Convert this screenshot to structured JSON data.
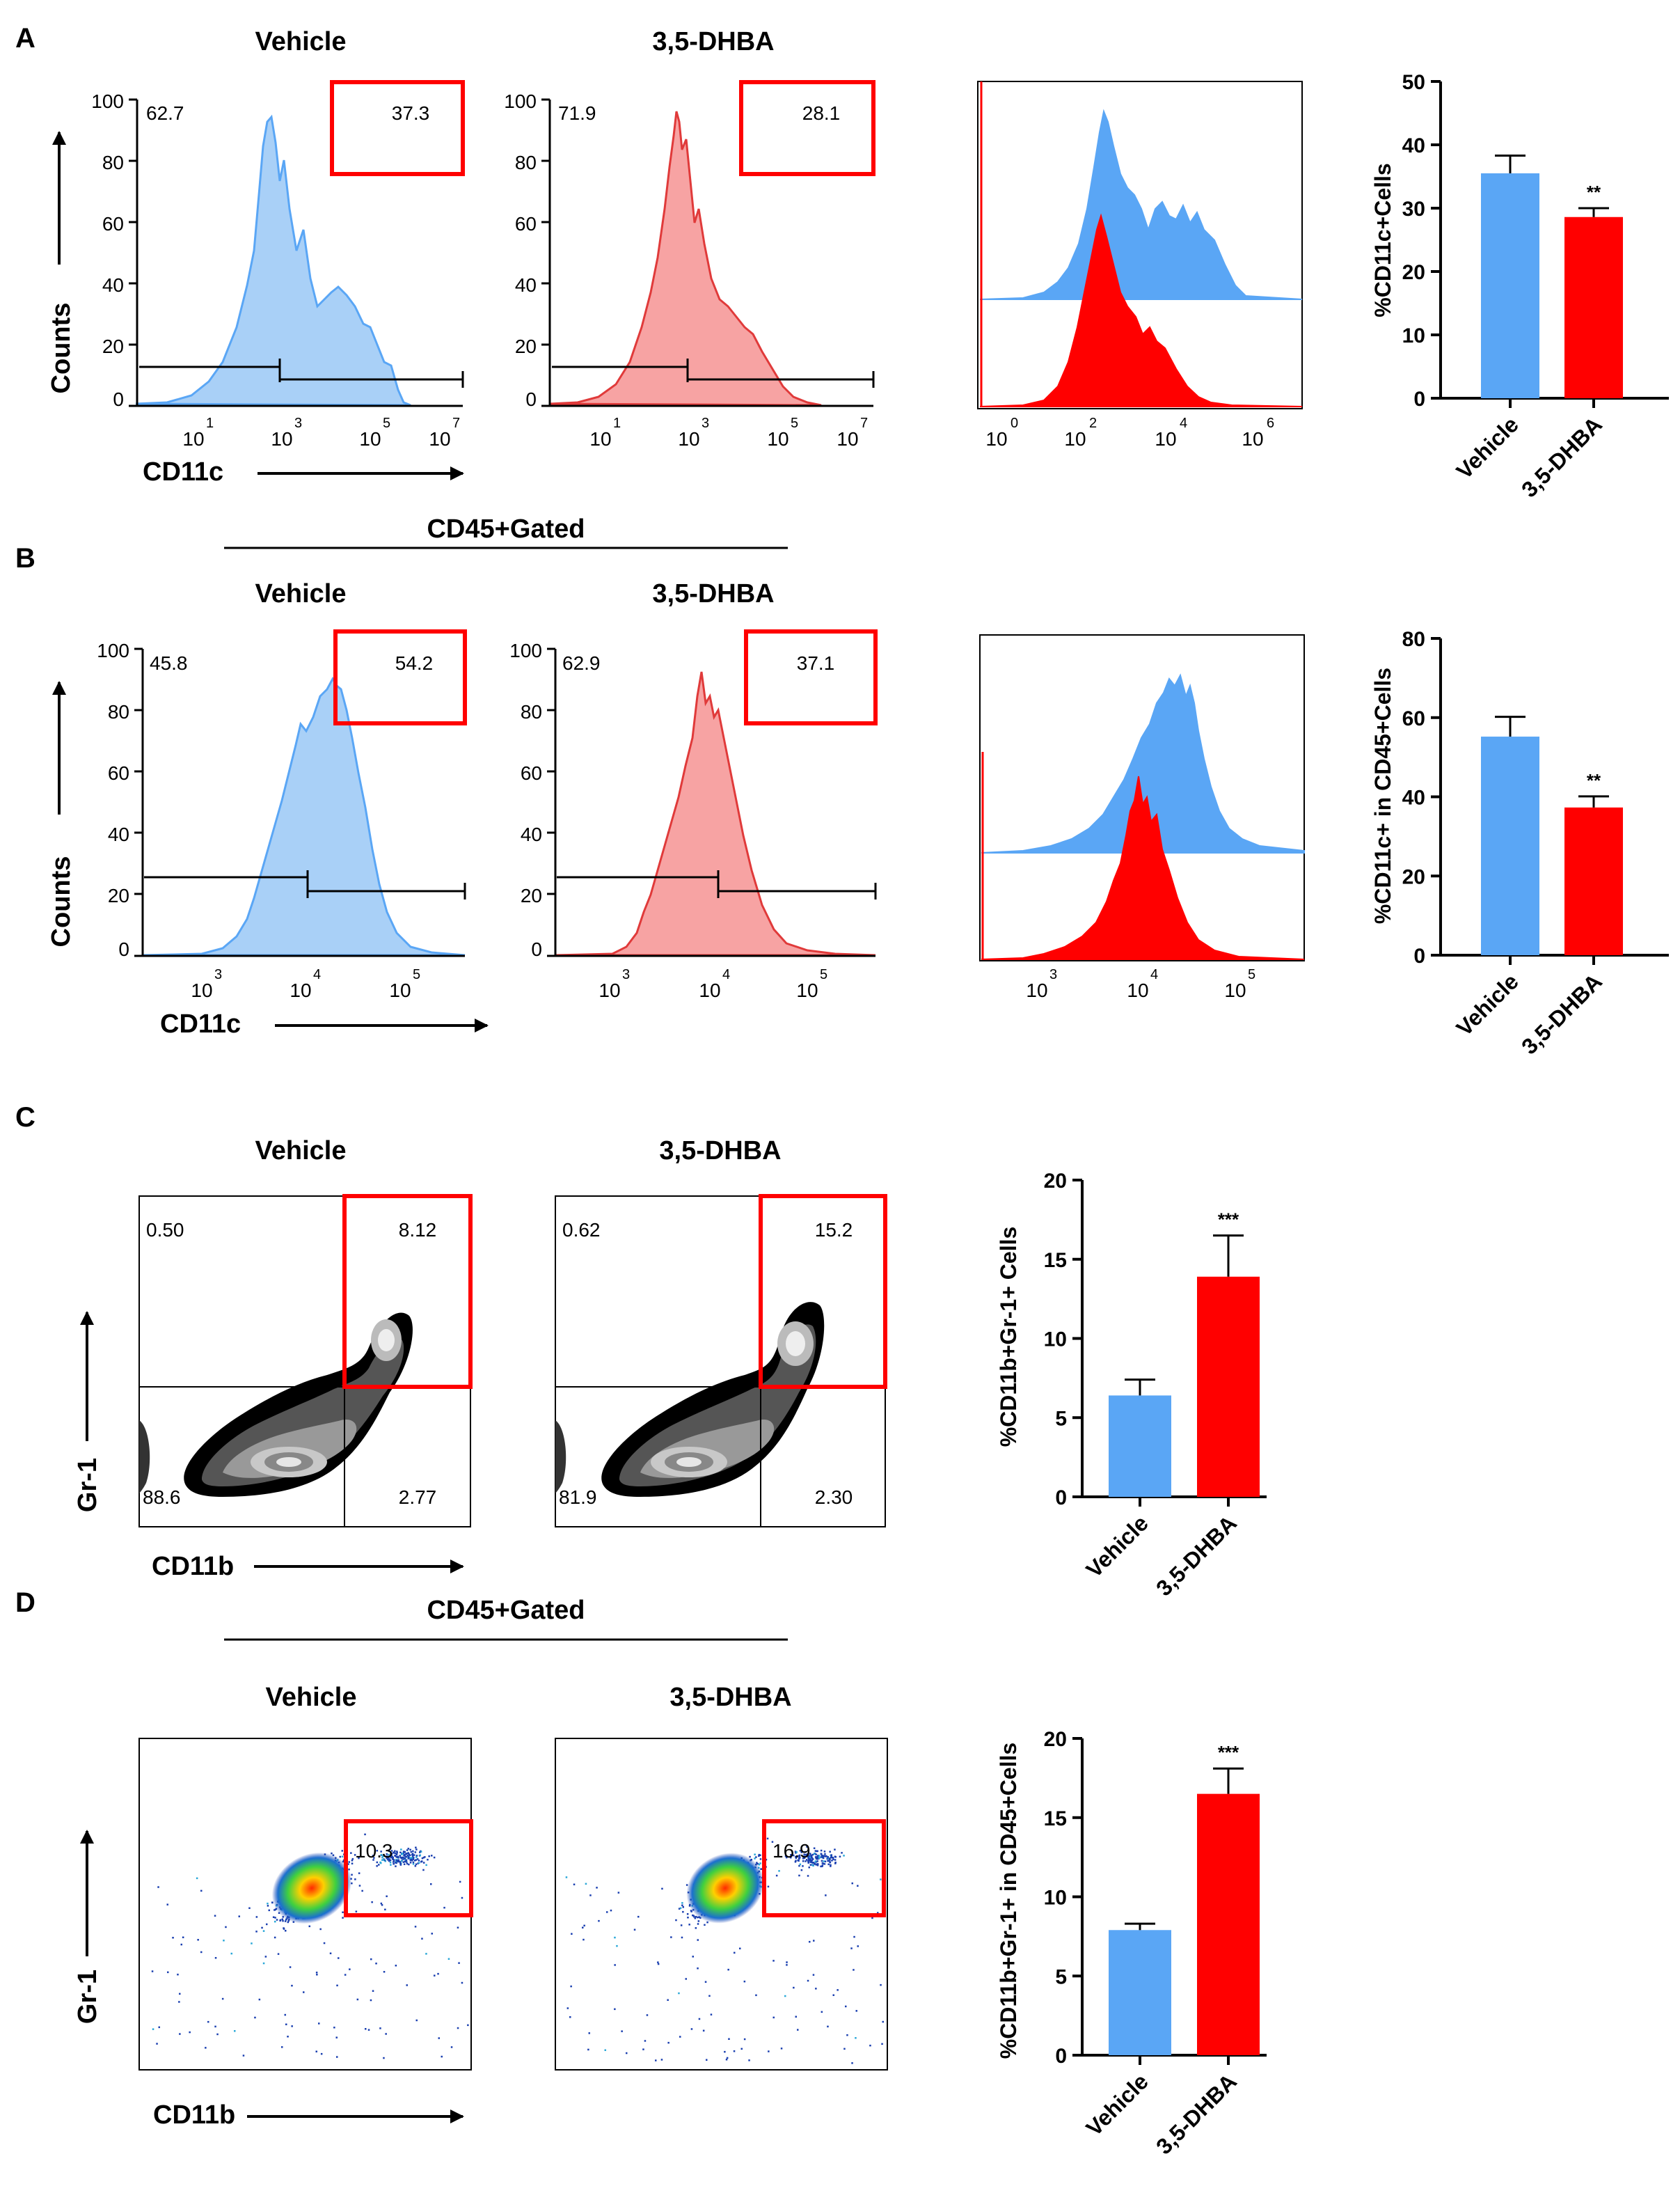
{
  "panels": {
    "A": "A",
    "B": "B",
    "C": "C",
    "D": "D"
  },
  "groups": {
    "vehicle": "Vehicle",
    "dhba": "3,5-DHBA"
  },
  "gated_label": "CD45+Gated",
  "axes": {
    "counts": "Counts",
    "cd11c": "CD11c",
    "gr1": "Gr-1",
    "cd11b": "CD11b"
  },
  "colors": {
    "vehicle": "#5aa6f5",
    "vehicle_fill": "#a9d0f7",
    "vehicle_line": "#5aa6f5",
    "dhba": "#ff0000",
    "dhba_fill": "#f7a3a3",
    "dhba_line": "#e03a3a",
    "gate": "#ff0000"
  },
  "histograms": {
    "A": {
      "yticks": [
        "0",
        "20",
        "40",
        "60",
        "80",
        "100"
      ],
      "xtick_bases": [
        "10",
        "10",
        "10",
        "10"
      ],
      "xtick_exps": [
        "1",
        "3",
        "5",
        "7"
      ],
      "overlay_xtick_bases": [
        "10",
        "10",
        "10",
        "10"
      ],
      "overlay_xtick_exps": [
        "0",
        "2",
        "4",
        "6"
      ],
      "vehicle": {
        "left": "62.7",
        "right": "37.3"
      },
      "dhba": {
        "left": "71.9",
        "right": "28.1"
      }
    },
    "B": {
      "yticks": [
        "0",
        "20",
        "40",
        "60",
        "80",
        "100"
      ],
      "xtick_bases": [
        "10",
        "10",
        "10"
      ],
      "xtick_exps": [
        "3",
        "4",
        "5"
      ],
      "overlay_xtick_bases": [
        "10",
        "10",
        "10"
      ],
      "overlay_xtick_exps": [
        "3",
        "4",
        "5"
      ],
      "vehicle": {
        "left": "45.8",
        "right": "54.2"
      },
      "dhba": {
        "left": "62.9",
        "right": "37.1"
      }
    }
  },
  "contour_C": {
    "vehicle": {
      "ul": "0.50",
      "ur": "8.12",
      "ll": "88.6",
      "lr": "2.77"
    },
    "dhba": {
      "ul": "0.62",
      "ur": "15.2",
      "ll": "81.9",
      "lr": "2.30"
    }
  },
  "dot_D": {
    "vehicle": {
      "gate": "10.3"
    },
    "dhba": {
      "gate": "16.9"
    }
  },
  "chart_data": [
    {
      "panel": "A",
      "type": "bar",
      "categories": [
        "Vehicle",
        "3,5-DHBA"
      ],
      "values": [
        35.5,
        28.6
      ],
      "errors": [
        2.8,
        1.4
      ],
      "significance": "**",
      "ylabel": "%CD11c+Cells",
      "ylim": [
        0,
        50
      ],
      "yticks": [
        "0",
        "10",
        "20",
        "30",
        "40",
        "50"
      ]
    },
    {
      "panel": "B",
      "type": "bar",
      "categories": [
        "Vehicle",
        "3,5-DHBA"
      ],
      "values": [
        55.2,
        37.3
      ],
      "errors": [
        5.0,
        2.8
      ],
      "significance": "**",
      "ylabel": "%CD11c+ in CD45+Cells",
      "ylim": [
        0,
        80
      ],
      "yticks": [
        "0",
        "20",
        "40",
        "60",
        "80"
      ]
    },
    {
      "panel": "C",
      "type": "bar",
      "categories": [
        "Vehicle",
        "3,5-DHBA"
      ],
      "values": [
        6.4,
        13.9
      ],
      "errors": [
        1.0,
        2.6
      ],
      "significance": "***",
      "ylabel": "%CD11b+Gr-1+ Cells",
      "ylim": [
        0,
        20
      ],
      "yticks": [
        "0",
        "5",
        "10",
        "15",
        "20"
      ]
    },
    {
      "panel": "D",
      "type": "bar",
      "categories": [
        "Vehicle",
        "3,5-DHBA"
      ],
      "values": [
        7.9,
        16.5
      ],
      "errors": [
        0.4,
        1.6
      ],
      "significance": "***",
      "ylabel": "%CD11b+Gr-1+ in CD45+Cells",
      "ylim": [
        0,
        20
      ],
      "yticks": [
        "0",
        "5",
        "10",
        "15",
        "20"
      ]
    }
  ]
}
